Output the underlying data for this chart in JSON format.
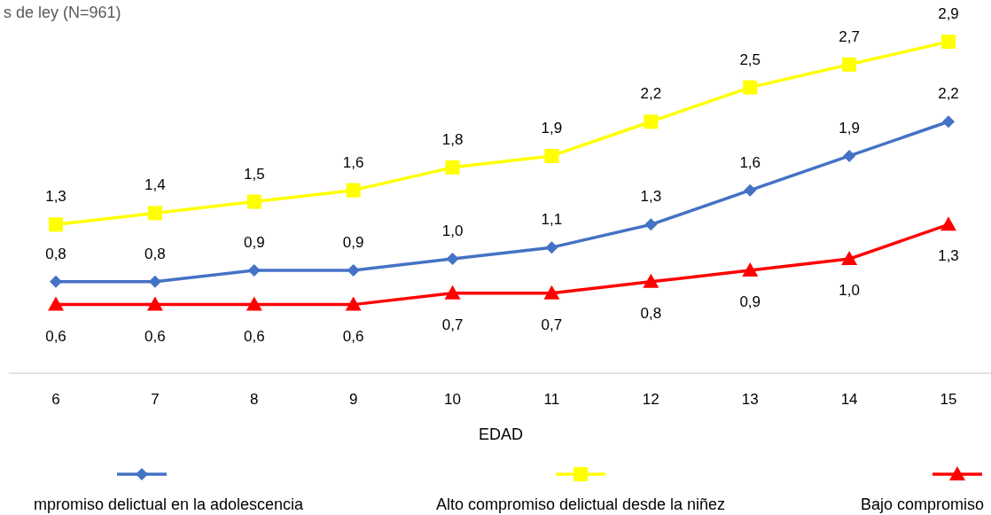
{
  "chart_data": {
    "type": "line",
    "title": "s de ley (N=961)",
    "xlabel": "EDAD",
    "categories": [
      "6",
      "7",
      "8",
      "9",
      "10",
      "11",
      "12",
      "13",
      "14",
      "15"
    ],
    "legend": "bottom",
    "line_style": "solid",
    "series": [
      {
        "name": "mpromiso delictual en la adolescencia",
        "color": "#4472c4",
        "marker": "diamond",
        "values": [
          0.8,
          0.8,
          0.9,
          0.9,
          1.0,
          1.1,
          1.3,
          1.6,
          1.9,
          2.2
        ],
        "value_labels": [
          "0,8",
          "0,8",
          "0,9",
          "0,9",
          "1,0",
          "1,1",
          "1,3",
          "1,6",
          "1,9",
          "2,2"
        ]
      },
      {
        "name": "Alto compromiso delictual desde la niñez",
        "color": "#ffff00",
        "marker": "square",
        "values": [
          1.3,
          1.4,
          1.5,
          1.6,
          1.8,
          1.9,
          2.2,
          2.5,
          2.7,
          2.9
        ],
        "value_labels": [
          "1,3",
          "1,4",
          "1,5",
          "1,6",
          "1,8",
          "1,9",
          "2,2",
          "2,5",
          "2,7",
          "2,9"
        ]
      },
      {
        "name": "Bajo compromiso",
        "color": "#ff0000",
        "marker": "triangle",
        "values": [
          0.6,
          0.6,
          0.6,
          0.6,
          0.7,
          0.7,
          0.8,
          0.9,
          1.0,
          1.3
        ],
        "value_labels": [
          "0,6",
          "0,6",
          "0,6",
          "0,6",
          "0,7",
          "0,7",
          "0,8",
          "0,9",
          "1,0",
          "1,3"
        ]
      }
    ]
  }
}
